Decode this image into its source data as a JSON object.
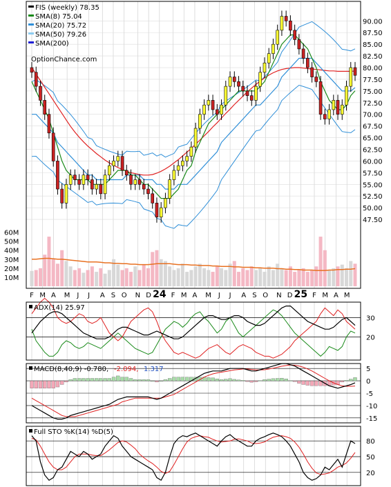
{
  "chart_data": {
    "type": "candlestick",
    "ticker": "FIS",
    "main": {
      "legend": [
        {
          "label": "FIS (weekly) 78.35",
          "color": "#000000"
        },
        {
          "label": "SMA(8) 75.04",
          "color": "#1a8a1a"
        },
        {
          "label": "SMA(20) 75.72",
          "color": "#2f8fd8"
        },
        {
          "label": "SMA(50) 79.26",
          "color": "#8ccbf0"
        },
        {
          "label": "SMA(200)",
          "color": "#1f1fd6"
        }
      ],
      "watermark": "OptionChance.com",
      "y_ticks": [
        "90.00",
        "87.50",
        "85.00",
        "82.50",
        "80.00",
        "77.50",
        "75.00",
        "72.50",
        "70.00",
        "67.50",
        "65.00",
        "62.50",
        "60.00",
        "57.50",
        "55.00",
        "52.50",
        "50.00",
        "47.50"
      ],
      "ylim": [
        45,
        93
      ],
      "volume_ticks": [
        "60M",
        "50M",
        "40M",
        "30M",
        "20M",
        "10M"
      ],
      "price_closes": [
        79,
        76,
        73,
        70,
        66,
        60,
        54,
        51,
        55,
        57,
        56,
        55,
        57,
        56,
        54,
        55,
        53,
        57,
        59,
        60,
        61,
        58,
        57,
        55,
        56,
        55,
        54,
        53,
        51,
        48,
        50,
        52,
        56,
        58,
        59,
        60,
        61,
        63,
        67,
        70,
        72,
        73,
        71,
        70,
        72,
        76,
        78,
        77,
        76,
        75,
        74,
        73,
        76,
        79,
        81,
        83,
        85,
        88,
        91,
        90,
        88,
        86,
        84,
        82,
        80,
        78,
        77,
        70,
        69,
        71,
        73,
        70,
        72,
        76,
        80,
        78.35
      ],
      "sma8": [
        77,
        75,
        73,
        71,
        69,
        66,
        63,
        60,
        58,
        57,
        56,
        56,
        56,
        56,
        55,
        55,
        55,
        55,
        56,
        57,
        58,
        58,
        58,
        57,
        57,
        56,
        55,
        55,
        54,
        53,
        52,
        52,
        52,
        53,
        54,
        56,
        58,
        59,
        62,
        64,
        66,
        68,
        69,
        70,
        71,
        72,
        73,
        74,
        75,
        75,
        75,
        75,
        75,
        76,
        77,
        79,
        81,
        83,
        85,
        86,
        87,
        87,
        86,
        85,
        84,
        82,
        80,
        77,
        75,
        73,
        72,
        71,
        71,
        72,
        74,
        75.04
      ],
      "sma20": [
        70,
        70,
        69,
        68,
        67,
        66,
        64,
        63,
        62,
        61,
        60,
        59,
        58,
        57,
        57,
        56,
        56,
        56,
        56,
        56,
        56,
        56,
        57,
        57,
        57,
        57,
        56,
        56,
        56,
        55,
        55,
        54,
        54,
        54,
        55,
        55,
        55,
        56,
        57,
        58,
        59,
        60,
        61,
        62,
        64,
        65,
        66,
        67,
        68,
        69,
        70,
        71,
        72,
        72,
        73,
        74,
        75,
        76,
        78,
        79,
        80,
        81,
        82,
        82,
        82,
        82,
        81,
        80,
        79,
        78,
        77,
        76,
        75,
        75,
        75,
        75.72
      ],
      "sma50": [
        80,
        78.6,
        77.2,
        75.8,
        74.4,
        73,
        71.6,
        70.2,
        68.8,
        67.4,
        66.2,
        65.1,
        64.1,
        63.2,
        62.4,
        61.6,
        60.9,
        60.2,
        59.6,
        59.1,
        58.6,
        58.2,
        57.8,
        57.5,
        57.3,
        57.1,
        57,
        57,
        57.1,
        57.4,
        57.8,
        58.3,
        58.9,
        59.6,
        60.3,
        61.1,
        61.9,
        62.7,
        63.6,
        64.5,
        65.4,
        66.3,
        67.3,
        68.2,
        69.2,
        70.2,
        71.1,
        72.1,
        73,
        73.9,
        74.8,
        75.6,
        76.4,
        77.1,
        77.8,
        78.4,
        78.9,
        79.3,
        79.6,
        79.8,
        79.9,
        80,
        80,
        79.9,
        79.8,
        79.7,
        79.6,
        79.5,
        79.4,
        79.3,
        79.3,
        79.2,
        79.2,
        79.2,
        79.2,
        79.26
      ],
      "volume_m": [
        17,
        18,
        20,
        35,
        55,
        30,
        25,
        40,
        28,
        22,
        18,
        20,
        15,
        18,
        22,
        16,
        20,
        14,
        18,
        30,
        24,
        18,
        20,
        16,
        22,
        18,
        24,
        20,
        38,
        40,
        30,
        28,
        22,
        18,
        20,
        25,
        16,
        18,
        22,
        25,
        20,
        18,
        16,
        22,
        20,
        18,
        25,
        28,
        16,
        20,
        18,
        22,
        18,
        20,
        16,
        22,
        18,
        25,
        20,
        18,
        22,
        16,
        18,
        20,
        16,
        18,
        22,
        55,
        40,
        18,
        20,
        22,
        24,
        20,
        28,
        25
      ],
      "volume_avg_m": [
        30,
        30,
        30.5,
        31,
        31,
        30.5,
        30,
        30,
        29.5,
        29,
        28.5,
        28,
        27.5,
        27,
        27,
        27,
        26.5,
        26,
        26,
        25.5,
        25.5,
        25,
        25,
        24.5,
        24.5,
        24,
        24,
        24,
        24.5,
        25,
        25,
        25,
        25,
        24.5,
        24,
        24,
        24,
        23.5,
        23.5,
        23,
        23,
        23,
        22.5,
        22.5,
        22,
        22,
        22,
        21.5,
        21.5,
        21,
        21,
        21,
        20.5,
        20.5,
        20,
        20,
        20,
        19.5,
        19.5,
        19,
        19,
        18.5,
        18.5,
        18,
        18,
        18,
        17.5,
        17.5,
        17.5,
        18,
        18,
        18.5,
        18.5,
        19,
        19,
        19.5
      ]
    },
    "x_labels": [
      "F",
      "M",
      "A",
      "M",
      "J",
      "J",
      "A",
      "S",
      "O",
      "N",
      "D",
      "24",
      "F",
      "M",
      "A",
      "M",
      "J",
      "J",
      "A",
      "S",
      "O",
      "N",
      "D",
      "25",
      "F",
      "M",
      "A",
      "M"
    ],
    "x_label_weeks": [
      0,
      4,
      8,
      13,
      17,
      21,
      26,
      30,
      34,
      39,
      43,
      47,
      52,
      56,
      60,
      65,
      69,
      73,
      78,
      82,
      86,
      91,
      95,
      99,
      104,
      108,
      112,
      116
    ],
    "adx": {
      "label": "ADX(14) 25.97",
      "y_ticks": [
        "30",
        "20"
      ],
      "ylim": [
        8,
        38
      ],
      "adx": [
        22,
        25,
        28,
        30,
        32,
        33,
        33,
        32,
        30,
        28,
        26,
        24,
        22,
        21,
        20,
        19,
        19,
        19,
        20,
        22,
        24,
        25,
        25,
        24,
        23,
        22,
        21,
        21,
        22,
        23,
        22,
        21,
        20,
        19,
        19,
        20,
        22,
        24,
        26,
        28,
        30,
        31,
        31,
        30,
        29,
        29,
        30,
        31,
        31,
        30,
        28,
        27,
        26,
        26,
        27,
        29,
        31,
        33,
        35,
        36,
        36,
        34,
        32,
        30,
        28,
        27,
        26,
        25,
        24,
        24,
        25,
        27,
        29,
        30,
        28,
        25.97
      ],
      "plus_di": [
        24,
        18,
        15,
        12,
        10,
        10,
        12,
        16,
        18,
        17,
        15,
        14,
        15,
        17,
        16,
        15,
        14,
        16,
        18,
        20,
        22,
        20,
        18,
        16,
        14,
        13,
        12,
        11,
        12,
        16,
        20,
        24,
        26,
        28,
        27,
        25,
        27,
        30,
        32,
        33,
        30,
        28,
        25,
        22,
        24,
        28,
        30,
        26,
        22,
        20,
        22,
        24,
        26,
        28,
        30,
        32,
        34,
        33,
        31,
        28,
        25,
        22,
        20,
        18,
        16,
        14,
        12,
        10,
        12,
        15,
        14,
        13,
        15,
        20,
        23,
        22
      ],
      "minus_di": [
        32,
        35,
        38,
        40,
        38,
        35,
        30,
        28,
        27,
        28,
        30,
        32,
        31,
        28,
        27,
        28,
        30,
        26,
        22,
        20,
        18,
        20,
        24,
        28,
        30,
        32,
        34,
        35,
        33,
        28,
        22,
        18,
        15,
        12,
        11,
        12,
        11,
        10,
        9,
        10,
        12,
        14,
        15,
        16,
        14,
        12,
        11,
        13,
        15,
        16,
        15,
        14,
        12,
        11,
        10,
        10,
        9,
        10,
        11,
        13,
        15,
        18,
        20,
        22,
        24,
        26,
        28,
        32,
        35,
        33,
        31,
        34,
        32,
        28,
        26,
        24
      ]
    },
    "macd": {
      "label": "MACD(8,40,9) -0.780,",
      "value2": "-2.094,",
      "value3": "1.317",
      "y_ticks": [
        "5",
        "0",
        "-5",
        "-10",
        "-15"
      ],
      "ylim": [
        -17,
        7
      ],
      "macd": [
        -10,
        -11,
        -12,
        -13,
        -14,
        -15,
        -15.5,
        -15.5,
        -15,
        -14,
        -13.5,
        -13,
        -12.5,
        -12,
        -11.5,
        -11,
        -10.5,
        -10,
        -9.5,
        -8.5,
        -7.5,
        -7,
        -6.5,
        -6.5,
        -6.5,
        -6.5,
        -6.5,
        -6.5,
        -7,
        -7.5,
        -7,
        -6,
        -5,
        -4,
        -3,
        -2,
        -1,
        0,
        1,
        2,
        3,
        3.5,
        4,
        4,
        4,
        4.5,
        5,
        5,
        5,
        5,
        4.5,
        4,
        4,
        4.5,
        5,
        5.5,
        6,
        6.5,
        7,
        7,
        6.5,
        6,
        5,
        4,
        3,
        2,
        1,
        0,
        -1,
        -2,
        -2.5,
        -3,
        -2.5,
        -2,
        -1.5,
        -0.78
      ],
      "signal": [
        -7,
        -8,
        -9,
        -10,
        -11,
        -12,
        -13,
        -14,
        -14.5,
        -14.5,
        -14.5,
        -14,
        -13.5,
        -13,
        -12.5,
        -12,
        -11.5,
        -11,
        -10.5,
        -10,
        -9.5,
        -8.5,
        -8,
        -7.5,
        -7,
        -7,
        -7,
        -7,
        -7,
        -7,
        -7,
        -6.5,
        -6,
        -5.5,
        -4.5,
        -3.5,
        -2.5,
        -1.5,
        -0.5,
        0.5,
        1.5,
        2.2,
        2.8,
        3.2,
        3.5,
        3.8,
        4.1,
        4.4,
        4.6,
        4.8,
        4.8,
        4.6,
        4.4,
        4.4,
        4.5,
        4.8,
        5.1,
        5.5,
        5.9,
        6.2,
        6.4,
        6.3,
        6,
        5.5,
        4.8,
        4,
        3,
        2,
        1,
        0,
        -0.8,
        -1.5,
        -2,
        -2.2,
        -2.2,
        -2.094
      ],
      "histogram": [
        -3,
        -3,
        -3,
        -3,
        -3,
        -3,
        -2.5,
        -1.5,
        -0.5,
        0.5,
        1,
        1,
        1,
        1,
        1,
        1,
        1,
        1,
        1,
        1.5,
        2,
        1.5,
        1.5,
        1,
        0.5,
        0.5,
        0.5,
        0.5,
        0,
        -0.5,
        0,
        0.5,
        1,
        1.5,
        1.5,
        1.5,
        1.5,
        1.5,
        1.5,
        1.5,
        1.5,
        1.3,
        1.2,
        0.8,
        0.5,
        0.7,
        0.9,
        0.6,
        0.4,
        0.2,
        -0.3,
        -0.6,
        -0.4,
        0.1,
        0.5,
        0.7,
        0.9,
        1,
        1.1,
        0.8,
        0.1,
        -0.3,
        -1,
        -1.5,
        -1.8,
        -2,
        -2,
        -2,
        -2,
        -2,
        -1.7,
        -1.5,
        -0.5,
        0.2,
        0.7,
        1.317
      ]
    },
    "sto": {
      "label": "Full STO %K(14) %D(5)",
      "y_ticks": [
        "80",
        "50",
        "20"
      ],
      "ylim": [
        0,
        100
      ],
      "k": [
        90,
        80,
        40,
        15,
        5,
        10,
        25,
        30,
        45,
        60,
        55,
        50,
        60,
        55,
        45,
        50,
        55,
        70,
        80,
        90,
        85,
        70,
        60,
        50,
        45,
        40,
        35,
        30,
        25,
        10,
        5,
        20,
        50,
        75,
        85,
        90,
        88,
        92,
        95,
        90,
        85,
        80,
        75,
        70,
        80,
        88,
        92,
        85,
        80,
        75,
        70,
        70,
        80,
        85,
        88,
        92,
        95,
        92,
        88,
        80,
        70,
        55,
        40,
        20,
        10,
        5,
        8,
        15,
        30,
        25,
        35,
        45,
        30,
        55,
        80,
        75
      ],
      "d": [
        85,
        82,
        70,
        55,
        40,
        30,
        25,
        25,
        30,
        40,
        50,
        55,
        55,
        55,
        53,
        52,
        52,
        57,
        63,
        70,
        77,
        80,
        78,
        72,
        65,
        55,
        48,
        42,
        37,
        30,
        22,
        18,
        22,
        35,
        50,
        65,
        78,
        85,
        88,
        90,
        88,
        87,
        83,
        80,
        78,
        79,
        80,
        83,
        84,
        82,
        80,
        76,
        75,
        76,
        78,
        83,
        87,
        89,
        90,
        88,
        85,
        78,
        68,
        55,
        40,
        28,
        19,
        16,
        17,
        19,
        24,
        30,
        33,
        38,
        47,
        58
      ]
    }
  }
}
